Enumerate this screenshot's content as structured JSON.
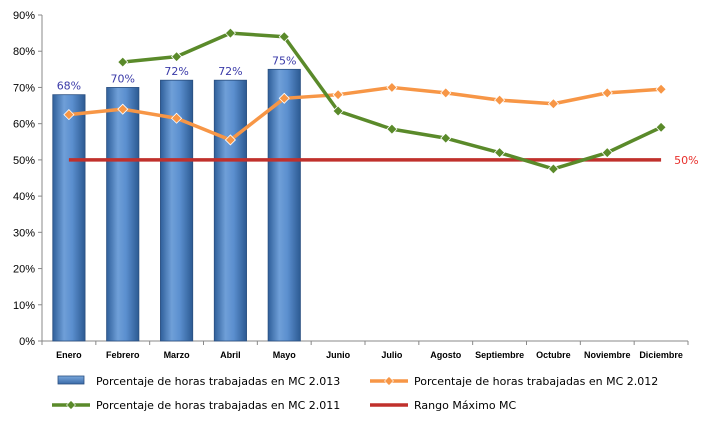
{
  "chart_data": {
    "type": "bar",
    "categories": [
      "Enero",
      "Febrero",
      "Marzo",
      "Abril",
      "Mayo",
      "Junio",
      "Julio",
      "Agosto",
      "Septiembre",
      "Octubre",
      "Noviembre",
      "Diciembre"
    ],
    "ylim": [
      0,
      90
    ],
    "yticks": [
      "0%",
      "10%",
      "20%",
      "30%",
      "40%",
      "50%",
      "60%",
      "70%",
      "80%",
      "90%"
    ],
    "ytick_values": [
      0,
      10,
      20,
      30,
      40,
      50,
      60,
      70,
      80,
      90
    ],
    "grid": false,
    "legend_position": "bottom",
    "series": [
      {
        "name": "Porcentaje de horas trabajadas en MC 2.013",
        "kind": "bar",
        "color": "#4f81bd",
        "values": [
          68,
          70,
          72,
          72,
          75,
          null,
          null,
          null,
          null,
          null,
          null,
          null
        ],
        "labels": [
          "68%",
          "70%",
          "72%",
          "72%",
          "75%"
        ]
      },
      {
        "name": "Porcentaje de horas trabajadas en MC 2.012",
        "kind": "line",
        "color": "#f79646",
        "values": [
          62.5,
          64,
          61.5,
          55.5,
          67,
          68,
          70,
          68.5,
          66.5,
          65.5,
          68.5,
          69.5
        ]
      },
      {
        "name": "Porcentaje de horas trabajadas en MC 2.011",
        "kind": "line",
        "color": "#5a8a2a",
        "values": [
          null,
          77,
          78.5,
          85,
          84,
          63.5,
          58.5,
          56,
          52,
          47.5,
          52,
          59
        ]
      },
      {
        "name": "Rango Máximo MC",
        "kind": "reference",
        "color": "#c0302c",
        "value": 50,
        "label": "50%"
      }
    ]
  }
}
